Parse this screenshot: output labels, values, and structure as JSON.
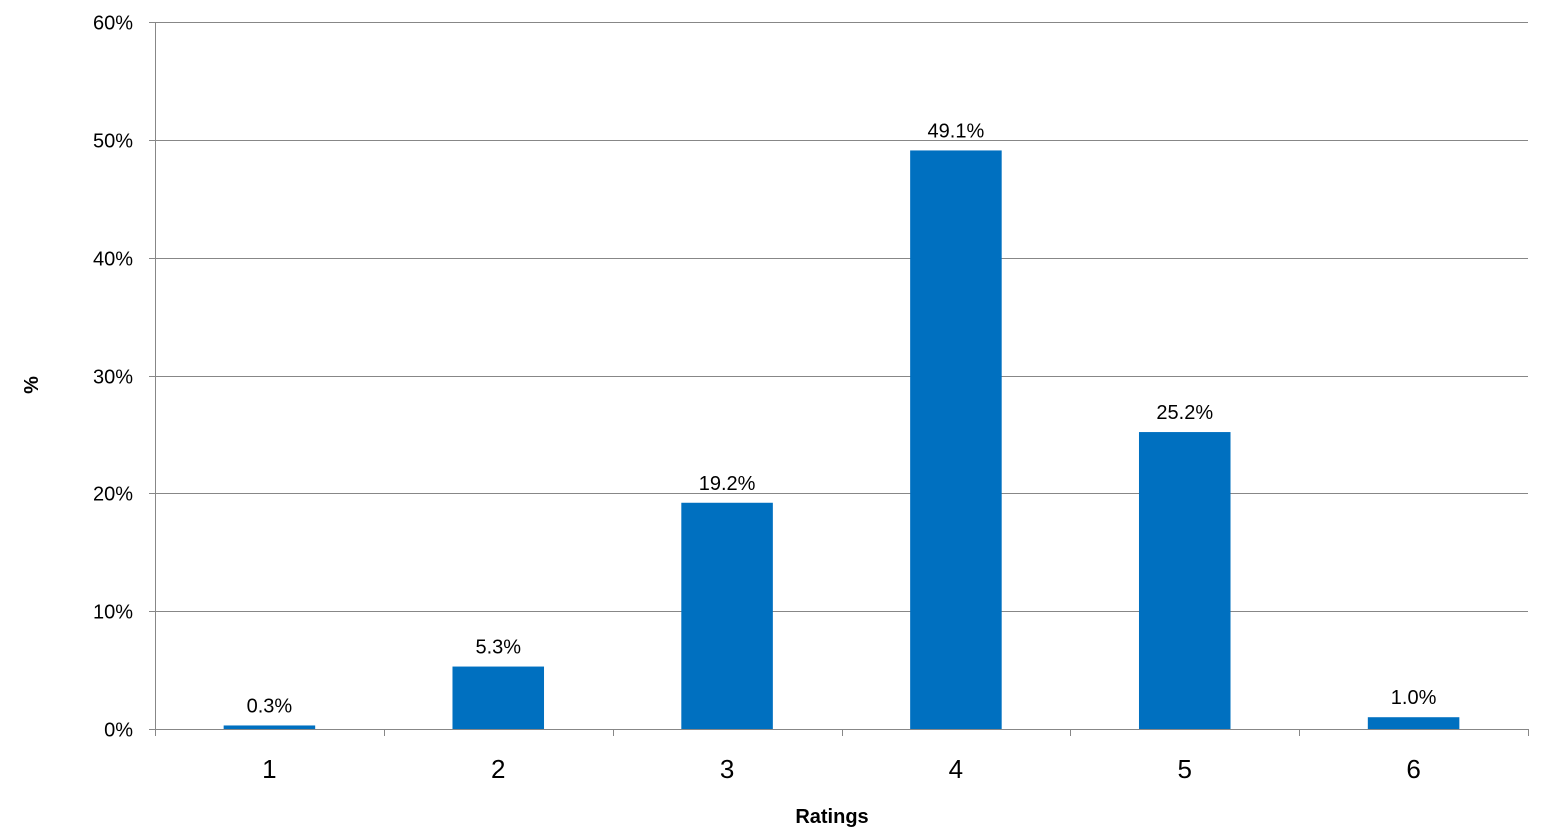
{
  "chart_data": {
    "type": "bar",
    "title": "",
    "xlabel": "Ratings",
    "ylabel": "%",
    "categories": [
      "1",
      "2",
      "3",
      "4",
      "5",
      "6"
    ],
    "values": [
      0.3,
      5.3,
      19.2,
      49.1,
      25.2,
      1.0
    ],
    "data_labels": [
      "0.3%",
      "5.3%",
      "19.2%",
      "49.1%",
      "25.2%",
      "1.0%"
    ],
    "ylim": [
      0,
      60
    ],
    "yticks": [
      0,
      10,
      20,
      30,
      40,
      50,
      60
    ],
    "ytick_labels": [
      "0%",
      "10%",
      "20%",
      "30%",
      "40%",
      "50%",
      "60%"
    ],
    "grid": "horizontal",
    "legend": "none",
    "colors": {
      "bar": "#0070C0",
      "grid": "#878787",
      "axis": "#878787"
    }
  }
}
